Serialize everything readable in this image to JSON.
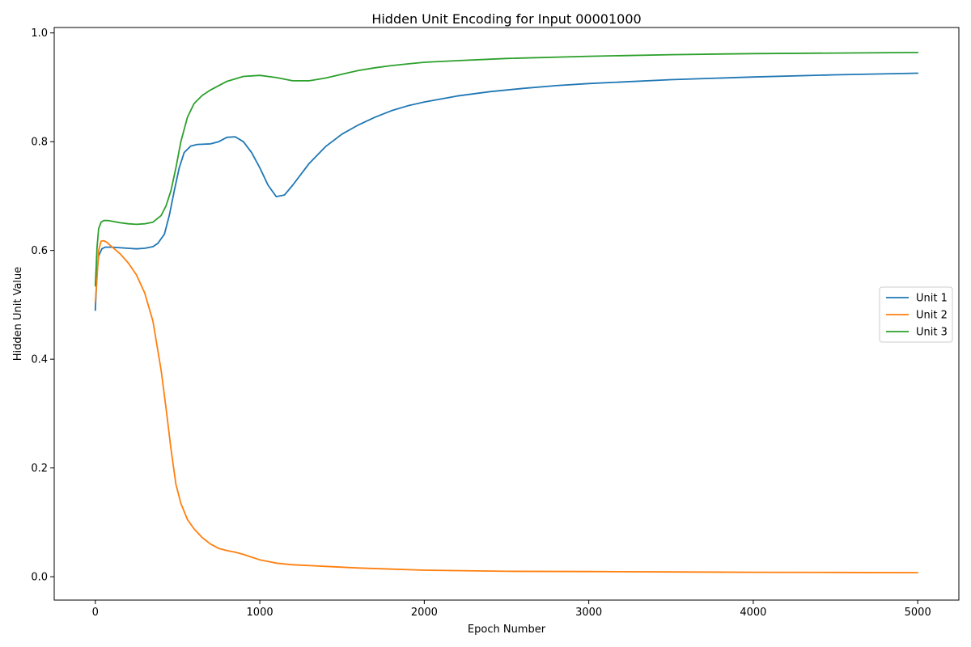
{
  "chart_data": {
    "type": "line",
    "title": "Hidden Unit Encoding for Input 00001000",
    "xlabel": "Epoch Number",
    "ylabel": "Hidden Unit Value",
    "xlim": [
      -250,
      5250
    ],
    "ylim": [
      -0.043,
      1.01
    ],
    "xticks": [
      0,
      1000,
      2000,
      3000,
      4000,
      5000
    ],
    "xtick_labels": [
      "0",
      "1000",
      "2000",
      "3000",
      "4000",
      "5000"
    ],
    "yticks": [
      0.0,
      0.2,
      0.4,
      0.6,
      0.8,
      1.0
    ],
    "ytick_labels": [
      "0.0",
      "0.2",
      "0.4",
      "0.6",
      "0.8",
      "1.0"
    ],
    "grid": false,
    "legend_position": "right",
    "series": [
      {
        "name": "Unit 1",
        "color": "#1f77b4",
        "points": [
          [
            0,
            0.49
          ],
          [
            10,
            0.56
          ],
          [
            20,
            0.59
          ],
          [
            40,
            0.603
          ],
          [
            60,
            0.606
          ],
          [
            100,
            0.606
          ],
          [
            200,
            0.604
          ],
          [
            250,
            0.603
          ],
          [
            300,
            0.604
          ],
          [
            350,
            0.607
          ],
          [
            380,
            0.613
          ],
          [
            420,
            0.63
          ],
          [
            450,
            0.665
          ],
          [
            480,
            0.71
          ],
          [
            510,
            0.752
          ],
          [
            540,
            0.78
          ],
          [
            580,
            0.792
          ],
          [
            620,
            0.795
          ],
          [
            700,
            0.796
          ],
          [
            750,
            0.8
          ],
          [
            800,
            0.808
          ],
          [
            850,
            0.809
          ],
          [
            900,
            0.8
          ],
          [
            950,
            0.78
          ],
          [
            1000,
            0.752
          ],
          [
            1050,
            0.72
          ],
          [
            1100,
            0.699
          ],
          [
            1150,
            0.702
          ],
          [
            1200,
            0.72
          ],
          [
            1300,
            0.76
          ],
          [
            1400,
            0.791
          ],
          [
            1500,
            0.814
          ],
          [
            1600,
            0.831
          ],
          [
            1700,
            0.845
          ],
          [
            1800,
            0.857
          ],
          [
            1900,
            0.866
          ],
          [
            2000,
            0.873
          ],
          [
            2200,
            0.884
          ],
          [
            2400,
            0.892
          ],
          [
            2600,
            0.898
          ],
          [
            2800,
            0.903
          ],
          [
            3000,
            0.907
          ],
          [
            3500,
            0.914
          ],
          [
            4000,
            0.919
          ],
          [
            4500,
            0.923
          ],
          [
            5000,
            0.926
          ]
        ]
      },
      {
        "name": "Unit 2",
        "color": "#ff7f0e",
        "points": [
          [
            0,
            0.505
          ],
          [
            10,
            0.55
          ],
          [
            20,
            0.6
          ],
          [
            35,
            0.617
          ],
          [
            50,
            0.618
          ],
          [
            70,
            0.615
          ],
          [
            100,
            0.607
          ],
          [
            150,
            0.594
          ],
          [
            200,
            0.577
          ],
          [
            250,
            0.555
          ],
          [
            300,
            0.522
          ],
          [
            350,
            0.47
          ],
          [
            400,
            0.38
          ],
          [
            430,
            0.31
          ],
          [
            460,
            0.235
          ],
          [
            490,
            0.17
          ],
          [
            520,
            0.135
          ],
          [
            560,
            0.105
          ],
          [
            600,
            0.088
          ],
          [
            650,
            0.072
          ],
          [
            700,
            0.06
          ],
          [
            750,
            0.052
          ],
          [
            800,
            0.048
          ],
          [
            850,
            0.045
          ],
          [
            900,
            0.041
          ],
          [
            950,
            0.036
          ],
          [
            1000,
            0.031
          ],
          [
            1100,
            0.025
          ],
          [
            1200,
            0.022
          ],
          [
            1400,
            0.019
          ],
          [
            1600,
            0.016
          ],
          [
            1800,
            0.014
          ],
          [
            2000,
            0.012
          ],
          [
            2500,
            0.01
          ],
          [
            3000,
            0.0095
          ],
          [
            3500,
            0.0088
          ],
          [
            4000,
            0.0082
          ],
          [
            4500,
            0.0078
          ],
          [
            5000,
            0.0074
          ]
        ]
      },
      {
        "name": "Unit 3",
        "color": "#2ca02c",
        "points": [
          [
            0,
            0.535
          ],
          [
            10,
            0.605
          ],
          [
            20,
            0.64
          ],
          [
            35,
            0.652
          ],
          [
            50,
            0.655
          ],
          [
            80,
            0.655
          ],
          [
            150,
            0.651
          ],
          [
            200,
            0.649
          ],
          [
            250,
            0.648
          ],
          [
            300,
            0.649
          ],
          [
            350,
            0.652
          ],
          [
            400,
            0.664
          ],
          [
            430,
            0.682
          ],
          [
            460,
            0.71
          ],
          [
            490,
            0.752
          ],
          [
            520,
            0.8
          ],
          [
            560,
            0.845
          ],
          [
            600,
            0.87
          ],
          [
            650,
            0.885
          ],
          [
            700,
            0.895
          ],
          [
            800,
            0.911
          ],
          [
            900,
            0.92
          ],
          [
            1000,
            0.922
          ],
          [
            1100,
            0.918
          ],
          [
            1200,
            0.912
          ],
          [
            1300,
            0.912
          ],
          [
            1400,
            0.917
          ],
          [
            1500,
            0.924
          ],
          [
            1600,
            0.931
          ],
          [
            1700,
            0.936
          ],
          [
            1800,
            0.94
          ],
          [
            1900,
            0.943
          ],
          [
            2000,
            0.946
          ],
          [
            2200,
            0.949
          ],
          [
            2500,
            0.953
          ],
          [
            3000,
            0.957
          ],
          [
            3500,
            0.96
          ],
          [
            4000,
            0.962
          ],
          [
            4500,
            0.963
          ],
          [
            5000,
            0.964
          ]
        ]
      }
    ]
  }
}
